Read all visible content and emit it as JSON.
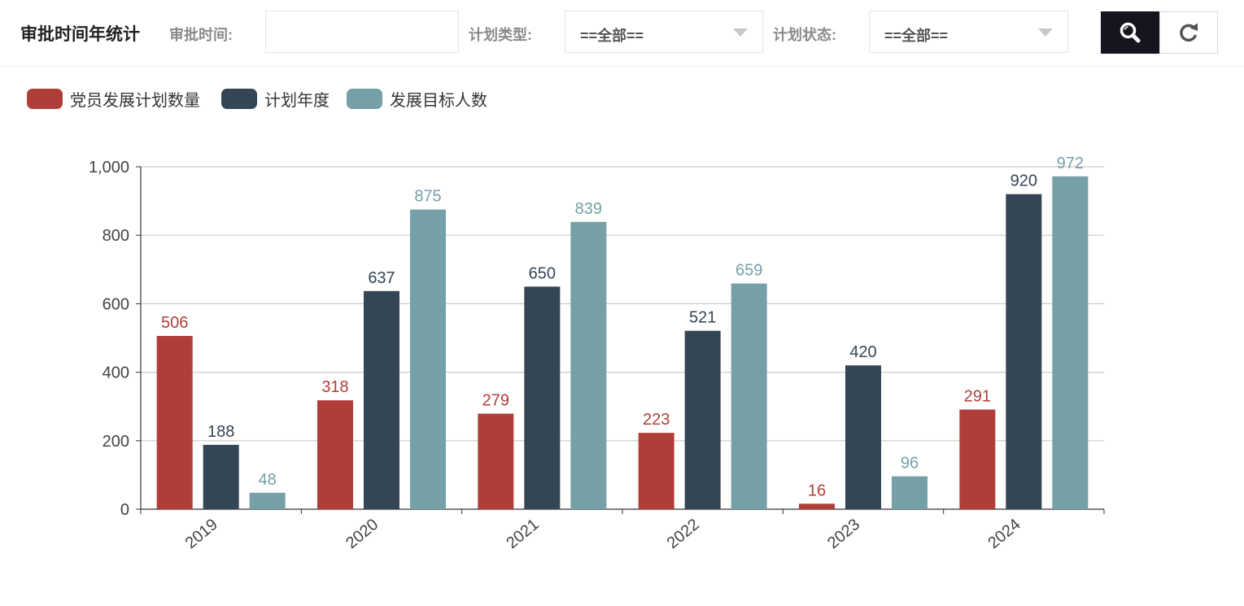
{
  "header": {
    "title": "审批时间年统计",
    "approval_time_label": "审批时间:",
    "approval_time_value": "",
    "plan_type_label": "计划类型:",
    "plan_type_value": "==全部==",
    "plan_status_label": "计划状态:",
    "plan_status_value": "==全部==",
    "search_icon": "search-icon",
    "refresh_icon": "refresh-icon"
  },
  "chart_data": {
    "type": "bar",
    "categories": [
      "2019",
      "2020",
      "2021",
      "2022",
      "2023",
      "2024"
    ],
    "series": [
      {
        "name": "党员发展计划数量",
        "color": "#b03e38",
        "values": [
          506,
          318,
          279,
          223,
          16,
          291
        ]
      },
      {
        "name": "计划年度",
        "color": "#344555",
        "values": [
          188,
          637,
          650,
          521,
          420,
          920
        ]
      },
      {
        "name": "发展目标人数",
        "color": "#76a0a8",
        "values": [
          48,
          875,
          839,
          659,
          96,
          972
        ]
      }
    ],
    "yticks": [
      "0",
      "200",
      "400",
      "600",
      "800",
      "1,000"
    ],
    "ylim": [
      0,
      1000
    ],
    "grid": true,
    "legend_position": "top-left",
    "title": "",
    "xlabel": "",
    "ylabel": ""
  }
}
